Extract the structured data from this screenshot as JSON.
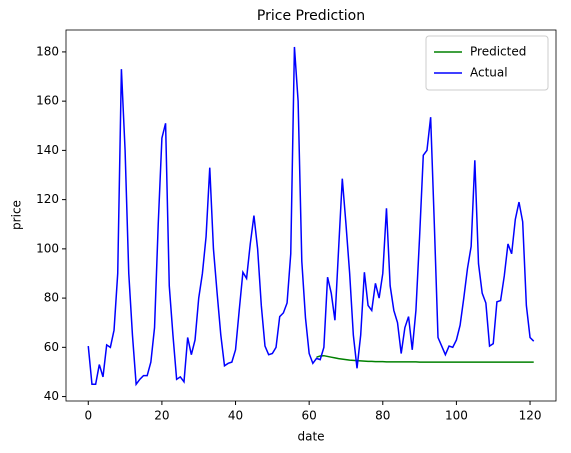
{
  "chart_data": {
    "type": "line",
    "title": "Price Prediction",
    "x_label": "date",
    "y_label": "price",
    "xlim": [
      -6.05,
      127.05
    ],
    "xticks": [
      0,
      20,
      40,
      60,
      80,
      100,
      120
    ],
    "ylim": [
      38.2,
      188.9
    ],
    "yticks": [
      40,
      60,
      80,
      100,
      120,
      140,
      160,
      180
    ],
    "grid": false,
    "legend": "upper right",
    "series": [
      {
        "name": "Predicted",
        "color": "#008000",
        "x": [
          62,
          63,
          64,
          65,
          66,
          67,
          68,
          69,
          70,
          71,
          72,
          73,
          74,
          75,
          76,
          77,
          78,
          79,
          80,
          81,
          82,
          83,
          84,
          85,
          86,
          87,
          88,
          89,
          90,
          91,
          92,
          93,
          94,
          95,
          96,
          97,
          98,
          99,
          100,
          101,
          102,
          103,
          104,
          105,
          106,
          107,
          108,
          109,
          110,
          111,
          112,
          113,
          114,
          115,
          116,
          117,
          118,
          119,
          120,
          121
        ],
        "values": [
          56,
          56.5,
          56.6,
          56.3,
          56,
          55.7,
          55.4,
          55.2,
          55,
          54.8,
          54.7,
          54.6,
          54.5,
          54.4,
          54.3,
          54.3,
          54.2,
          54.2,
          54.2,
          54.1,
          54.1,
          54.1,
          54.1,
          54.1,
          54.1,
          54.1,
          54.1,
          54.1,
          54,
          54,
          54,
          54,
          54,
          54,
          54,
          54,
          54,
          54,
          54,
          54,
          54,
          54,
          54,
          54,
          54,
          54,
          54,
          54,
          54,
          54,
          54,
          54,
          54,
          54,
          54,
          54,
          54,
          54,
          54,
          54
        ]
      },
      {
        "name": "Actual",
        "color": "#0000ff",
        "x": [
          0,
          1,
          2,
          3,
          4,
          5,
          6,
          7,
          8,
          9,
          10,
          11,
          12,
          13,
          14,
          15,
          16,
          17,
          18,
          19,
          20,
          21,
          22,
          23,
          24,
          25,
          26,
          27,
          28,
          29,
          30,
          31,
          32,
          33,
          34,
          35,
          36,
          37,
          38,
          39,
          40,
          41,
          42,
          43,
          44,
          45,
          46,
          47,
          48,
          49,
          50,
          51,
          52,
          53,
          54,
          55,
          56,
          57,
          58,
          59,
          60,
          61,
          62,
          63,
          64,
          65,
          66,
          67,
          68,
          69,
          70,
          71,
          72,
          73,
          74,
          75,
          76,
          77,
          78,
          79,
          80,
          81,
          82,
          83,
          84,
          85,
          86,
          87,
          88,
          89,
          90,
          91,
          92,
          93,
          94,
          95,
          96,
          97,
          98,
          99,
          100,
          101,
          102,
          103,
          104,
          105,
          106,
          107,
          108,
          109,
          110,
          111,
          112,
          113,
          114,
          115,
          116,
          117,
          118,
          119,
          120,
          121
        ],
        "values": [
          60.5,
          45,
          45,
          53,
          48,
          61,
          60,
          67,
          90,
          173,
          140,
          90,
          65,
          45,
          47,
          48.5,
          48.5,
          54,
          68,
          110,
          145,
          151,
          85,
          65,
          47,
          48,
          46,
          64,
          57,
          63,
          80,
          90,
          105,
          133,
          100,
          82,
          65,
          52.5,
          53.5,
          54,
          59,
          75,
          90.5,
          88,
          102,
          113.5,
          100,
          77,
          60.5,
          57,
          57.5,
          60,
          72.5,
          74,
          78,
          98,
          182,
          160,
          95,
          72,
          57.5,
          53.5,
          55.5,
          55,
          60,
          88.5,
          82,
          71,
          100,
          128.5,
          110,
          90,
          65,
          51.5,
          65,
          90.5,
          77,
          75,
          86,
          80,
          90,
          116.5,
          85,
          75,
          70,
          57.5,
          68,
          72.5,
          59,
          75,
          105,
          138,
          140,
          153.5,
          110,
          64,
          60.5,
          57,
          60.5,
          60,
          63,
          69,
          80,
          92,
          101,
          136,
          94,
          82,
          78,
          60.5,
          61.5,
          78.5,
          79,
          89,
          102,
          98,
          112,
          119,
          111,
          77,
          64,
          62.5
        ]
      }
    ]
  }
}
